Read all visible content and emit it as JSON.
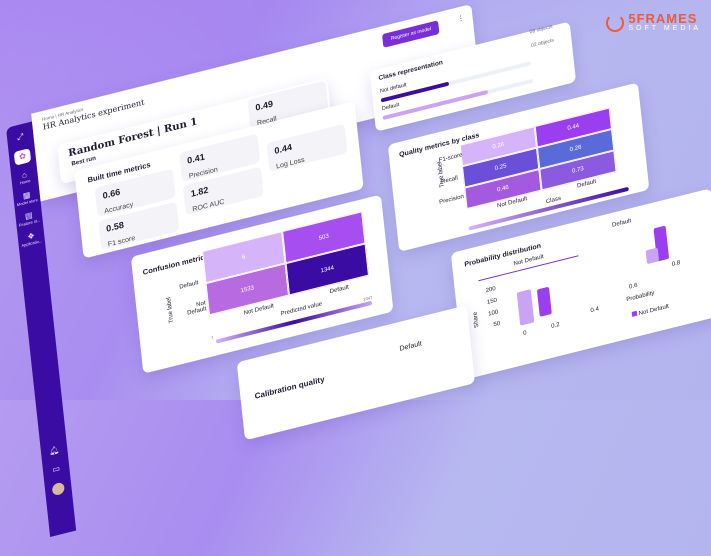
{
  "logo": {
    "line1": "5FRAMES",
    "line2": "SOFT MEDIA"
  },
  "sidebar": {
    "items": [
      {
        "label": "Home",
        "icon": "home-icon"
      },
      {
        "label": "Model store",
        "icon": "grid-icon"
      },
      {
        "label": "Feature st...",
        "icon": "database-icon"
      },
      {
        "label": "Applicatio...",
        "icon": "apps-icon"
      }
    ],
    "bottom_icons": [
      "bell-icon",
      "book-icon",
      "avatar"
    ]
  },
  "header": {
    "breadcrumb": [
      "Home",
      "HR Analytics"
    ],
    "experiment_title": "HR Analytics experiment",
    "run_title": "Random Forest | Run 1",
    "run_badge": "Best run",
    "register_button": "Register as model"
  },
  "metrics": {
    "title": "Built time metrics",
    "items": [
      {
        "value": "0.66",
        "label": "Accuracy"
      },
      {
        "value": "0.41",
        "label": "Precision"
      },
      {
        "value": "0.49",
        "label": "Recall"
      },
      {
        "value": "0.58",
        "label": "F1 score"
      },
      {
        "value": "1.82",
        "label": "ROC AUC"
      },
      {
        "value": "0.44",
        "label": "Log Loss"
      }
    ]
  },
  "class_representation": {
    "title": "Class representation",
    "rows": [
      {
        "label": "Not default",
        "count": "08 objects",
        "fraction": 0.45,
        "color": "#3a0ca3"
      },
      {
        "label": "Default",
        "count": "02 objects",
        "fraction": 0.7,
        "color": "#c9a3f5"
      }
    ]
  },
  "quality": {
    "title": "Quality metrics by class",
    "ylabel": "True label",
    "xlabel": "Class",
    "rows": [
      "F1-score",
      "Recall",
      "Precision"
    ],
    "cols": [
      "Not Default",
      "Default"
    ],
    "values": [
      [
        "0.26",
        "0.44"
      ],
      [
        "0.25",
        "0.26"
      ],
      [
        "0.46",
        "0.73"
      ]
    ],
    "scale_min": "0",
    "scale_max": "1"
  },
  "confusion": {
    "title": "Confusion metrics",
    "ylabel": "True label",
    "xlabel": "Predicted value",
    "rows": [
      "Default",
      "Not Default"
    ],
    "cols": [
      "Not Default",
      "Default"
    ],
    "values": [
      [
        "6",
        "503"
      ],
      [
        "1533",
        "1344"
      ]
    ],
    "scale_min": "1",
    "scale_max": "2347"
  },
  "probability": {
    "title": "Probability distribution",
    "tabs": [
      "Not Default",
      "Default"
    ],
    "active_tab": "Not Default",
    "ylabel": "Share",
    "xlabel": "Probability",
    "yticks": [
      "200",
      "150",
      "100",
      "50"
    ],
    "xticks": [
      "0",
      "0.2",
      "0.4",
      "0.6",
      "0.8"
    ],
    "legend": [
      "Not Default"
    ]
  },
  "calibration": {
    "title": "Calibration quality",
    "tab": "Default"
  },
  "colors": {
    "sidebar": "#3a0ca3",
    "accent": "#7a2fd6",
    "light": "#c9a3f5"
  }
}
